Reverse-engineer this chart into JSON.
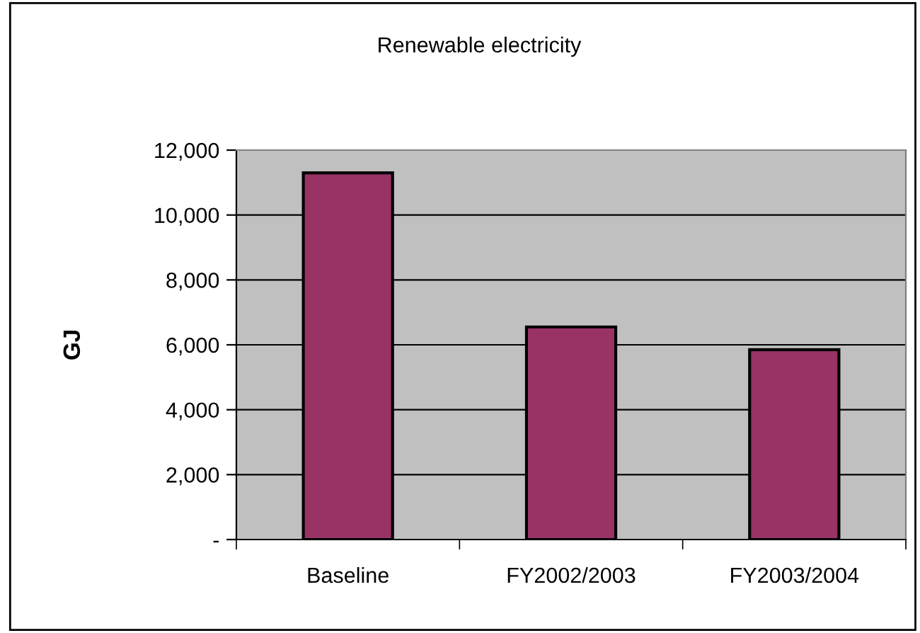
{
  "chart_data": {
    "type": "bar",
    "title": "Renewable electricity",
    "ylabel": "GJ",
    "categories": [
      "Baseline",
      "FY2002/2003",
      "FY2003/2004"
    ],
    "values": [
      11300,
      6550,
      5850
    ],
    "color": "#993366",
    "ylim": [
      0,
      12000
    ],
    "yticks": [
      {
        "value": 0,
        "label": "-"
      },
      {
        "value": 2000,
        "label": "2,000"
      },
      {
        "value": 4000,
        "label": "4,000"
      },
      {
        "value": 6000,
        "label": "6,000"
      },
      {
        "value": 8000,
        "label": "8,000"
      },
      {
        "value": 10000,
        "label": "10,000"
      },
      {
        "value": 12000,
        "label": "12,000"
      }
    ],
    "grid": "y"
  }
}
